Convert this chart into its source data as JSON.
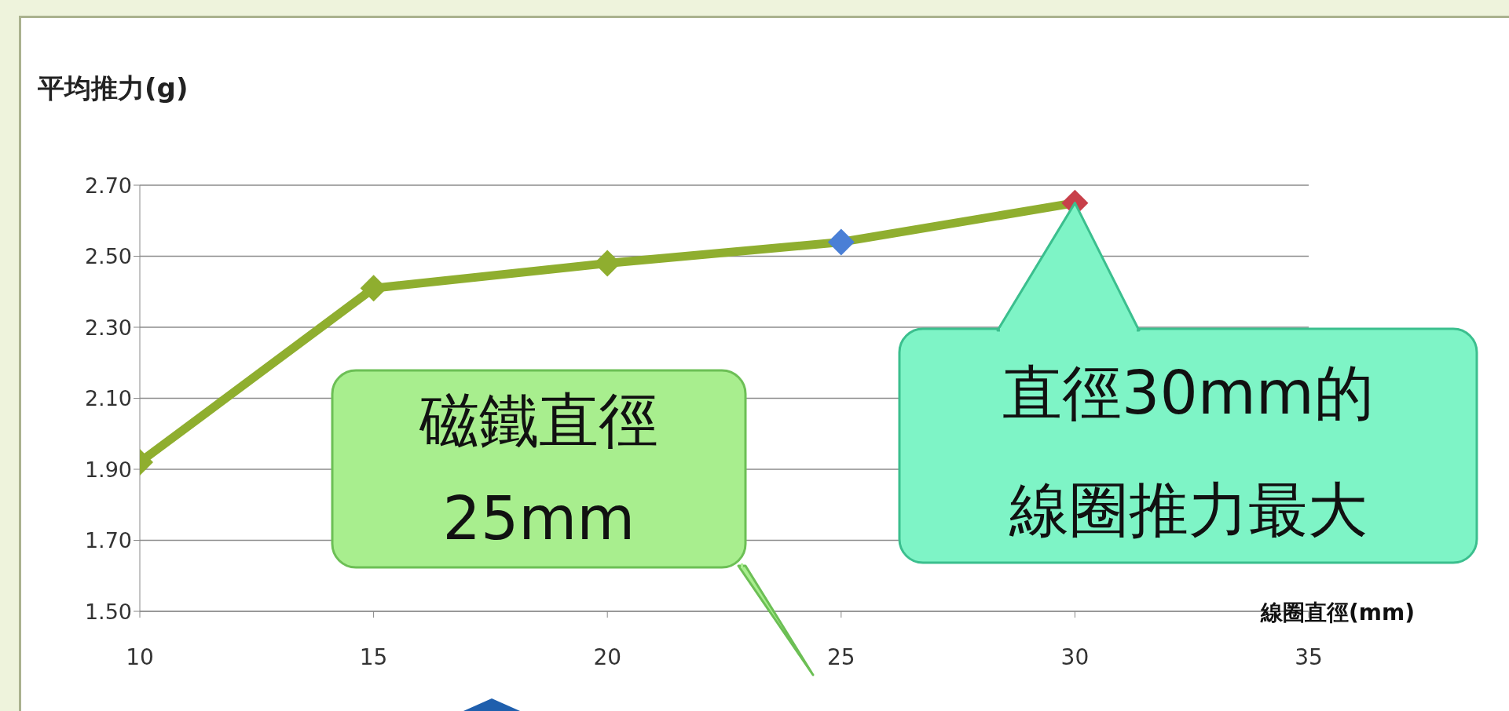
{
  "chart_data": {
    "type": "line",
    "ylabel": "平均推力(g)",
    "xlabel": "線圈直徑(mm)",
    "x": [
      10,
      15,
      20,
      25,
      30
    ],
    "series": [
      {
        "color": "#8fae2f",
        "colors": [
          "#8fae2f",
          "#8fae2f",
          "#8fae2f",
          "#4a7fd6",
          "#c8404a"
        ],
        "values": [
          1.92,
          2.41,
          2.48,
          2.54,
          2.65
        ]
      }
    ],
    "xlim": [
      10,
      35
    ],
    "xticks": [
      10,
      15,
      20,
      25,
      30,
      35
    ],
    "ylim": [
      1.5,
      2.7
    ],
    "yticks": [
      {
        "value": 1.5,
        "label": "1.50"
      },
      {
        "value": 1.7,
        "label": "1.70"
      },
      {
        "value": 1.9,
        "label": "1.90"
      },
      {
        "value": 2.1,
        "label": "2.10"
      },
      {
        "value": 2.3,
        "label": "2.30"
      },
      {
        "value": 2.5,
        "label": "2.50"
      },
      {
        "value": 2.7,
        "label": "2.70"
      }
    ],
    "grid": "y",
    "marker": "diamond",
    "line_style": "solid",
    "annotations": [
      "磁鐵直徑",
      "25mm",
      {
        "text": "直徑30mm的",
        "x": 30,
        "y": 2.65
      },
      "線圈推力最大"
    ]
  }
}
